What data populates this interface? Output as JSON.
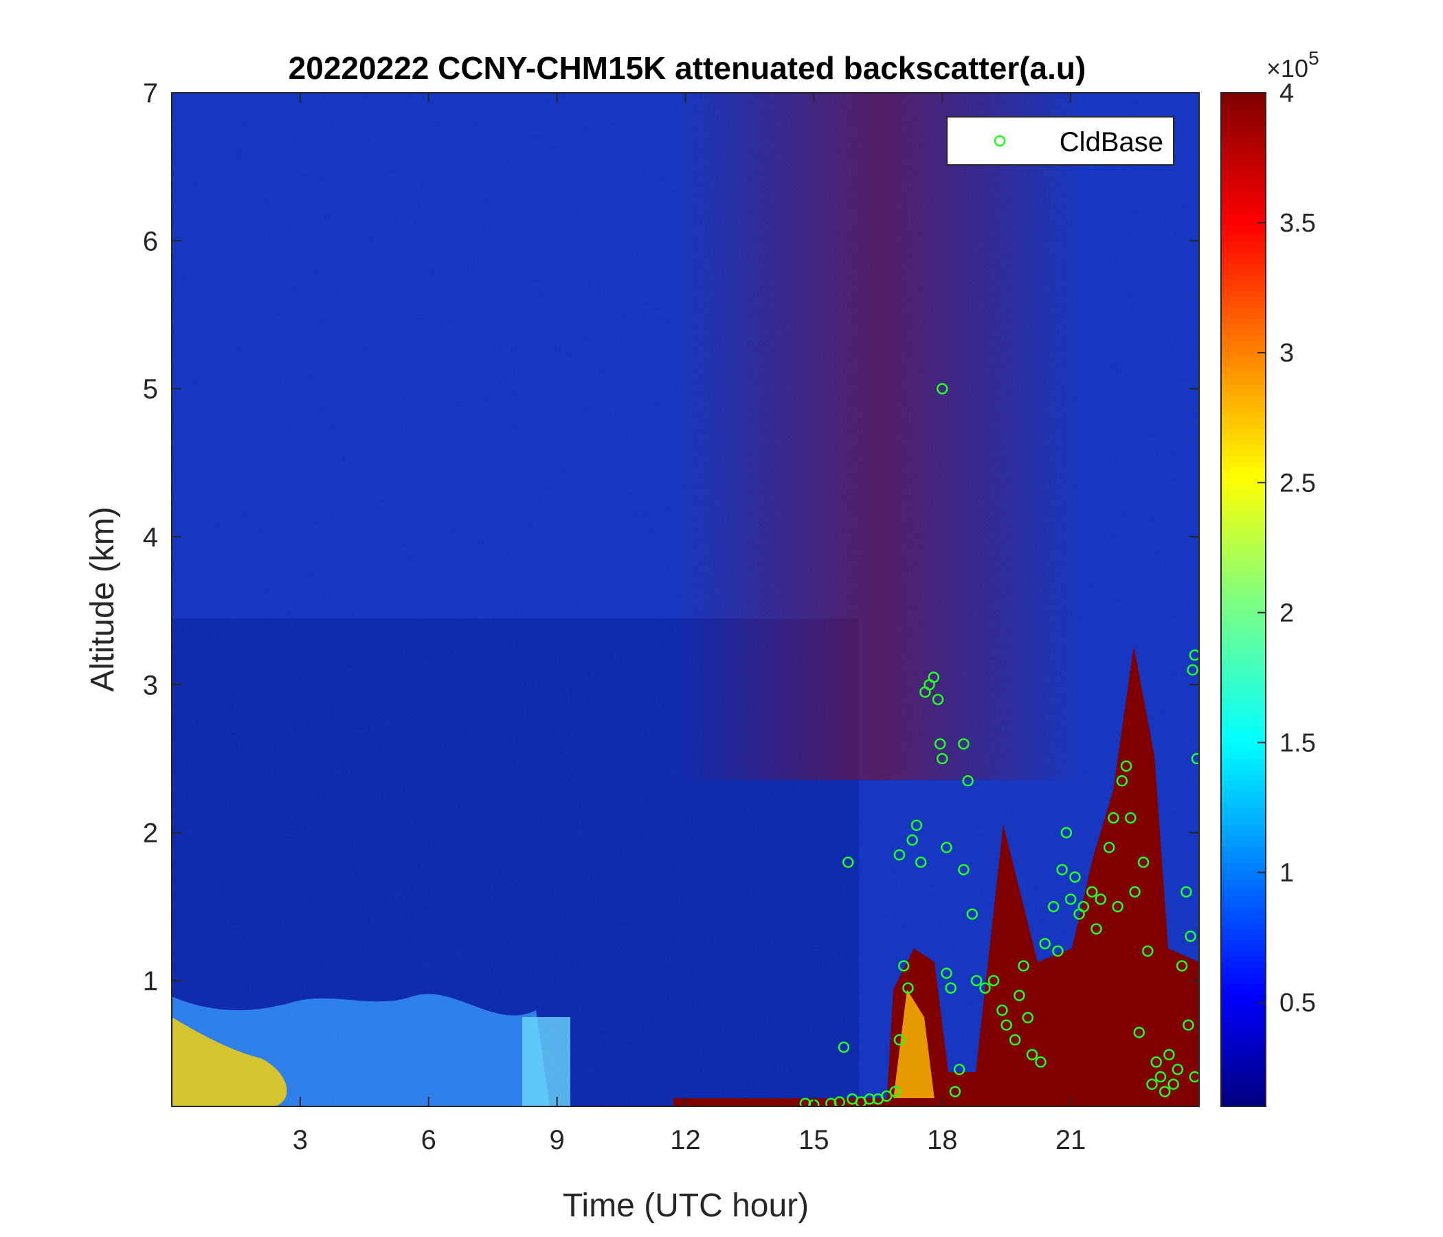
{
  "chart_data": {
    "type": "heatmap",
    "title": "20220222 CCNY-CHM15K attenuated backscatter(a.u)",
    "xlabel": "Time (UTC hour)",
    "ylabel": "Altitude (km)",
    "xlim": [
      0,
      24
    ],
    "ylim": [
      0.15,
      7
    ],
    "x_ticks": [
      3,
      6,
      9,
      12,
      15,
      18,
      21
    ],
    "y_ticks": [
      1,
      2,
      3,
      4,
      5,
      6,
      7
    ],
    "colorbar": {
      "colormap": "jet",
      "range": [
        0.1,
        4
      ],
      "ticks": [
        0.5,
        1,
        1.5,
        2,
        2.5,
        3,
        3.5,
        4
      ],
      "exponent_label": "×10",
      "exponent": "5"
    },
    "legend": {
      "location": "top-right",
      "entries": [
        {
          "name": "CldBase",
          "marker": "circle",
          "color": "#22ff22"
        }
      ]
    },
    "colors": {
      "background_noise": "#1438c8",
      "high_signal": "#800000",
      "marker": "#22ff22"
    },
    "series": [
      {
        "name": "CldBase",
        "points": [
          [
            14.8,
            0.17
          ],
          [
            15.0,
            0.16
          ],
          [
            15.4,
            0.17
          ],
          [
            15.6,
            0.18
          ],
          [
            15.7,
            0.55
          ],
          [
            15.8,
            1.8
          ],
          [
            15.9,
            0.2
          ],
          [
            16.1,
            0.18
          ],
          [
            16.3,
            0.2
          ],
          [
            16.5,
            0.2
          ],
          [
            16.7,
            0.22
          ],
          [
            16.9,
            0.25
          ],
          [
            17.0,
            1.85
          ],
          [
            17.0,
            0.6
          ],
          [
            17.1,
            1.1
          ],
          [
            17.2,
            0.95
          ],
          [
            17.3,
            1.95
          ],
          [
            17.4,
            2.05
          ],
          [
            17.5,
            1.8
          ],
          [
            17.6,
            2.95
          ],
          [
            17.7,
            3.0
          ],
          [
            17.8,
            3.05
          ],
          [
            17.9,
            2.9
          ],
          [
            18.0,
            5.0
          ],
          [
            17.95,
            2.6
          ],
          [
            18.0,
            2.5
          ],
          [
            18.1,
            1.9
          ],
          [
            18.1,
            1.05
          ],
          [
            18.2,
            0.95
          ],
          [
            18.3,
            0.25
          ],
          [
            18.4,
            0.4
          ],
          [
            18.5,
            2.6
          ],
          [
            18.6,
            2.35
          ],
          [
            18.5,
            1.75
          ],
          [
            18.7,
            1.45
          ],
          [
            18.8,
            1.0
          ],
          [
            19.0,
            0.95
          ],
          [
            19.2,
            1.0
          ],
          [
            19.4,
            0.8
          ],
          [
            19.5,
            0.7
          ],
          [
            19.7,
            0.6
          ],
          [
            19.8,
            0.9
          ],
          [
            19.9,
            1.1
          ],
          [
            20.0,
            0.75
          ],
          [
            20.1,
            0.5
          ],
          [
            20.3,
            0.45
          ],
          [
            20.4,
            1.25
          ],
          [
            20.6,
            1.5
          ],
          [
            20.7,
            1.2
          ],
          [
            20.8,
            1.75
          ],
          [
            20.9,
            2.0
          ],
          [
            21.0,
            1.55
          ],
          [
            21.1,
            1.7
          ],
          [
            21.2,
            1.45
          ],
          [
            21.3,
            1.5
          ],
          [
            21.5,
            1.6
          ],
          [
            21.6,
            1.35
          ],
          [
            21.7,
            1.55
          ],
          [
            21.9,
            1.9
          ],
          [
            22.0,
            2.1
          ],
          [
            22.1,
            1.5
          ],
          [
            22.2,
            2.35
          ],
          [
            22.3,
            2.45
          ],
          [
            22.4,
            2.1
          ],
          [
            22.5,
            1.6
          ],
          [
            22.6,
            0.65
          ],
          [
            22.7,
            1.8
          ],
          [
            22.8,
            1.2
          ],
          [
            22.9,
            0.3
          ],
          [
            23.0,
            0.45
          ],
          [
            23.1,
            0.35
          ],
          [
            23.2,
            0.25
          ],
          [
            23.3,
            0.5
          ],
          [
            23.4,
            0.3
          ],
          [
            23.5,
            0.4
          ],
          [
            23.6,
            1.1
          ],
          [
            23.7,
            1.6
          ],
          [
            23.75,
            0.7
          ],
          [
            23.8,
            1.3
          ],
          [
            23.85,
            3.1
          ],
          [
            23.9,
            0.35
          ],
          [
            23.95,
            2.5
          ],
          [
            23.9,
            3.2
          ]
        ]
      }
    ]
  }
}
